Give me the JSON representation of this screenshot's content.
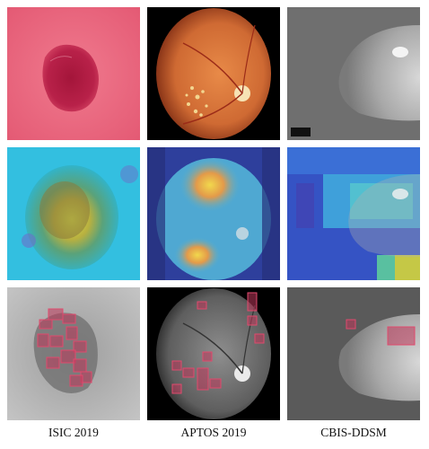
{
  "figure": {
    "columns": [
      {
        "caption": "ISIC 2019"
      },
      {
        "caption": "APTOS 2019"
      },
      {
        "caption": "CBIS-DDSM"
      }
    ],
    "rows": [
      "original-image",
      "attention-heatmap",
      "bounding-box-overlay"
    ],
    "colors": {
      "skin": "#e4667d",
      "lesion": "#b01c43",
      "fundus": "#d9733d",
      "mammo_bg": "#6d6d6d",
      "box_fill": "#c0385b",
      "box_stroke": "#e04a6d"
    }
  }
}
